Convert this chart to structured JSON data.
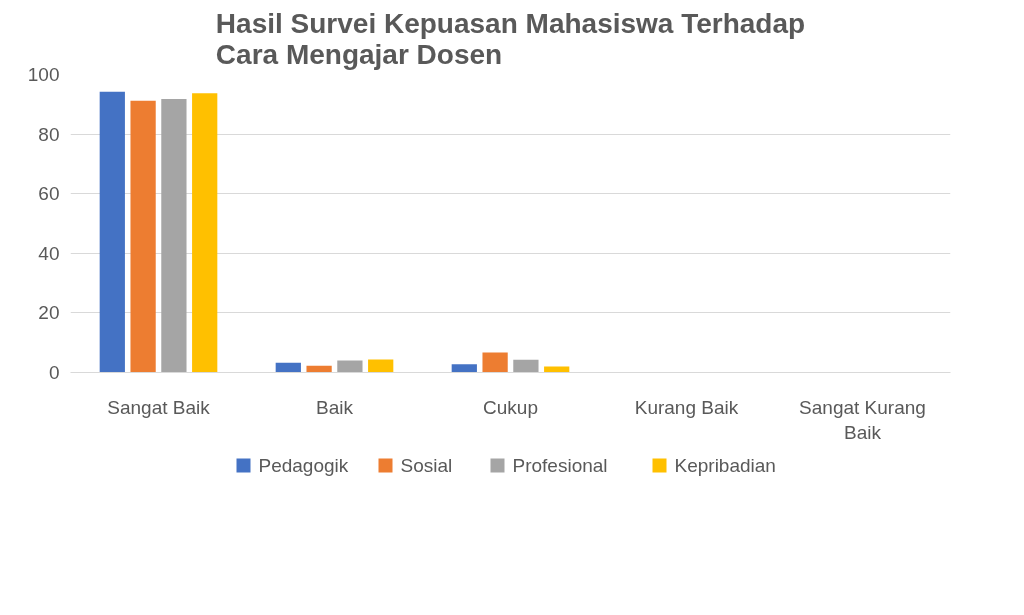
{
  "chart_data": {
    "type": "bar",
    "title": "Hasil Survei Kepuasan Mahasiswa Terhadap\nCara Mengajar Dosen",
    "categories": [
      "Sangat Baik",
      "Baik",
      "Cukup",
      "Kurang Baik",
      "Sangat Kurang Baik"
    ],
    "series": [
      {
        "name": "Pedagogik",
        "color": "#4472c4",
        "values": [
          94.2,
          3.3,
          2.8,
          0,
          0
        ]
      },
      {
        "name": "Sosial",
        "color": "#ed7d31",
        "values": [
          91.2,
          2.3,
          6.7,
          0,
          0
        ]
      },
      {
        "name": "Profesional",
        "color": "#a5a5a5",
        "values": [
          91.8,
          4.0,
          4.3,
          0,
          0
        ]
      },
      {
        "name": "Kepribadian",
        "color": "#ffc000",
        "values": [
          93.7,
          4.4,
          2.0,
          0,
          0
        ]
      }
    ],
    "ylim": [
      0,
      100
    ],
    "yticks": [
      0,
      20,
      40,
      60,
      80,
      100
    ],
    "grid": "y",
    "legend": "bottom"
  }
}
